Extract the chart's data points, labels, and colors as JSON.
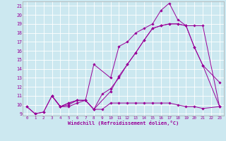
{
  "bg_color": "#cce8f0",
  "line_color": "#990099",
  "xlim": [
    -0.5,
    23.5
  ],
  "ylim": [
    8.8,
    21.5
  ],
  "xticks": [
    0,
    1,
    2,
    3,
    4,
    5,
    6,
    7,
    8,
    9,
    10,
    11,
    12,
    13,
    14,
    15,
    16,
    17,
    18,
    19,
    20,
    21,
    22,
    23
  ],
  "yticks": [
    9,
    10,
    11,
    12,
    13,
    14,
    15,
    16,
    17,
    18,
    19,
    20,
    21
  ],
  "xlabel": "Windchill (Refroidissement éolien,°C)",
  "series": [
    {
      "x": [
        0,
        1,
        2,
        3,
        4,
        5,
        6,
        7,
        8,
        9,
        10,
        11,
        12,
        13,
        14,
        15,
        16,
        17,
        18,
        19,
        20,
        21,
        23
      ],
      "y": [
        9.8,
        9.0,
        9.2,
        11.0,
        9.8,
        10.0,
        10.5,
        10.5,
        9.5,
        9.5,
        10.2,
        10.2,
        10.2,
        10.2,
        10.2,
        10.2,
        10.2,
        10.2,
        10.0,
        9.8,
        9.8,
        9.6,
        9.8
      ]
    },
    {
      "x": [
        3,
        4,
        5,
        6,
        7,
        8,
        10,
        11,
        12,
        13,
        14,
        15,
        16,
        17,
        18,
        19,
        20,
        21,
        23
      ],
      "y": [
        11.0,
        9.8,
        10.2,
        10.5,
        10.5,
        14.5,
        13.0,
        16.5,
        17.0,
        18.0,
        18.5,
        19.0,
        20.5,
        21.3,
        19.5,
        18.8,
        16.4,
        14.4,
        12.5
      ]
    },
    {
      "x": [
        0,
        1,
        2,
        3,
        4,
        5,
        6,
        7,
        8,
        10,
        11,
        12,
        13,
        14,
        15,
        16,
        17,
        18,
        19,
        20,
        21,
        23
      ],
      "y": [
        9.8,
        9.0,
        9.2,
        11.0,
        9.8,
        9.8,
        10.2,
        10.5,
        9.5,
        11.5,
        13.2,
        14.5,
        15.8,
        17.2,
        18.5,
        18.8,
        19.0,
        19.0,
        18.8,
        18.8,
        18.8,
        9.8
      ]
    },
    {
      "x": [
        3,
        4,
        5,
        6,
        7,
        8,
        9,
        10,
        11,
        12,
        13,
        14,
        15,
        16,
        17,
        18,
        19,
        20,
        21,
        23
      ],
      "y": [
        11.0,
        9.8,
        10.2,
        10.5,
        10.5,
        9.5,
        11.2,
        11.8,
        13.0,
        14.5,
        15.8,
        17.2,
        18.5,
        18.8,
        19.0,
        19.0,
        18.8,
        16.4,
        14.4,
        9.8
      ]
    }
  ]
}
